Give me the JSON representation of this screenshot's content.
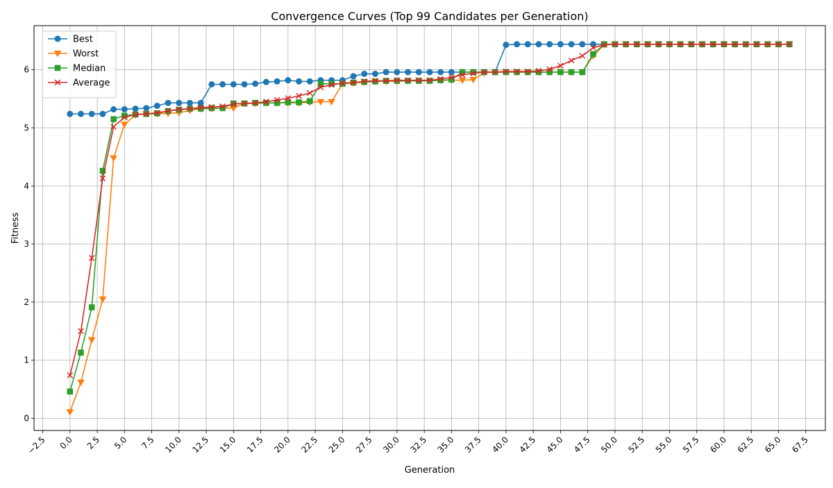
{
  "chart_data": {
    "type": "line",
    "title": "Convergence Curves (Top 99 Candidates per Generation)",
    "xlabel": "Generation",
    "ylabel": "Fitness",
    "xlim": [
      -3.3,
      69.3
    ],
    "ylim": [
      -0.21,
      6.76
    ],
    "xticks": [
      -2.5,
      0.0,
      2.5,
      5.0,
      7.5,
      10.0,
      12.5,
      15.0,
      17.5,
      20.0,
      22.5,
      25.0,
      27.5,
      30.0,
      32.5,
      35.0,
      37.5,
      40.0,
      42.5,
      45.0,
      47.5,
      50.0,
      52.5,
      55.0,
      57.5,
      60.0,
      62.5,
      65.0,
      67.5
    ],
    "xtick_labels": [
      "−2.5",
      "0.0",
      "2.5",
      "5.0",
      "7.5",
      "10.0",
      "12.5",
      "15.0",
      "17.5",
      "20.0",
      "22.5",
      "25.0",
      "27.5",
      "30.0",
      "32.5",
      "35.0",
      "37.5",
      "40.0",
      "42.5",
      "45.0",
      "47.5",
      "50.0",
      "52.5",
      "55.0",
      "57.5",
      "60.0",
      "62.5",
      "65.0",
      "67.5"
    ],
    "yticks": [
      0,
      1,
      2,
      3,
      4,
      5,
      6
    ],
    "ytick_labels": [
      "0",
      "1",
      "2",
      "3",
      "4",
      "5",
      "6"
    ],
    "grid": true,
    "legend_position": "top-left",
    "series": [
      {
        "name": "Best",
        "color": "#1f77b4",
        "marker": "circle",
        "values": [
          5.24,
          5.24,
          5.24,
          5.24,
          5.32,
          5.32,
          5.33,
          5.34,
          5.38,
          5.43,
          5.43,
          5.43,
          5.43,
          5.75,
          5.75,
          5.75,
          5.75,
          5.76,
          5.79,
          5.8,
          5.82,
          5.8,
          5.8,
          5.82,
          5.82,
          5.82,
          5.89,
          5.93,
          5.93,
          5.96,
          5.96,
          5.96,
          5.96,
          5.96,
          5.96,
          5.96,
          5.96,
          5.96,
          5.96,
          5.96,
          6.43,
          6.44,
          6.44,
          6.44,
          6.44,
          6.44,
          6.44,
          6.44,
          6.44,
          6.44,
          6.44,
          6.44,
          6.44,
          6.44,
          6.44,
          6.44,
          6.44,
          6.44,
          6.44,
          6.44,
          6.44,
          6.44,
          6.44,
          6.44,
          6.44,
          6.44,
          6.44
        ]
      },
      {
        "name": "Worst",
        "color": "#ff7f0e",
        "marker": "triangle-down",
        "values": [
          0.11,
          0.62,
          1.35,
          2.05,
          4.48,
          5.06,
          5.22,
          5.24,
          5.24,
          5.25,
          5.26,
          5.3,
          5.33,
          5.33,
          5.34,
          5.34,
          5.42,
          5.42,
          5.43,
          5.43,
          5.43,
          5.43,
          5.44,
          5.45,
          5.45,
          5.76,
          5.77,
          5.79,
          5.8,
          5.8,
          5.8,
          5.81,
          5.81,
          5.81,
          5.82,
          5.82,
          5.82,
          5.83,
          5.95,
          5.96,
          5.96,
          5.96,
          5.96,
          5.96,
          5.96,
          5.96,
          5.96,
          5.96,
          6.24,
          6.43,
          6.44,
          6.44,
          6.44,
          6.44,
          6.44,
          6.44,
          6.44,
          6.44,
          6.44,
          6.44,
          6.44,
          6.44,
          6.44,
          6.44,
          6.44,
          6.44,
          6.44
        ]
      },
      {
        "name": "Median",
        "color": "#2ca02c",
        "marker": "square",
        "values": [
          0.46,
          1.13,
          1.91,
          4.26,
          5.15,
          5.21,
          5.23,
          5.24,
          5.25,
          5.29,
          5.31,
          5.33,
          5.33,
          5.34,
          5.34,
          5.42,
          5.42,
          5.43,
          5.43,
          5.43,
          5.44,
          5.44,
          5.46,
          5.76,
          5.76,
          5.76,
          5.78,
          5.79,
          5.8,
          5.81,
          5.81,
          5.81,
          5.81,
          5.81,
          5.82,
          5.83,
          5.96,
          5.96,
          5.96,
          5.96,
          5.96,
          5.96,
          5.96,
          5.96,
          5.96,
          5.96,
          5.96,
          5.96,
          6.27,
          6.44,
          6.44,
          6.44,
          6.44,
          6.44,
          6.44,
          6.44,
          6.44,
          6.44,
          6.44,
          6.44,
          6.44,
          6.44,
          6.44,
          6.44,
          6.44,
          6.44,
          6.44
        ]
      },
      {
        "name": "Average",
        "color": "#d62728",
        "marker": "x",
        "values": [
          0.74,
          1.5,
          2.76,
          4.13,
          5.02,
          5.18,
          5.23,
          5.24,
          5.26,
          5.29,
          5.32,
          5.33,
          5.35,
          5.36,
          5.37,
          5.41,
          5.42,
          5.43,
          5.45,
          5.48,
          5.51,
          5.55,
          5.6,
          5.7,
          5.74,
          5.77,
          5.78,
          5.8,
          5.81,
          5.81,
          5.82,
          5.82,
          5.82,
          5.82,
          5.84,
          5.87,
          5.91,
          5.94,
          5.96,
          5.96,
          5.97,
          5.97,
          5.97,
          5.98,
          6.01,
          6.07,
          6.16,
          6.24,
          6.38,
          6.43,
          6.44,
          6.44,
          6.44,
          6.44,
          6.44,
          6.44,
          6.44,
          6.44,
          6.44,
          6.44,
          6.44,
          6.44,
          6.44,
          6.44,
          6.44,
          6.44,
          6.44
        ]
      }
    ]
  }
}
